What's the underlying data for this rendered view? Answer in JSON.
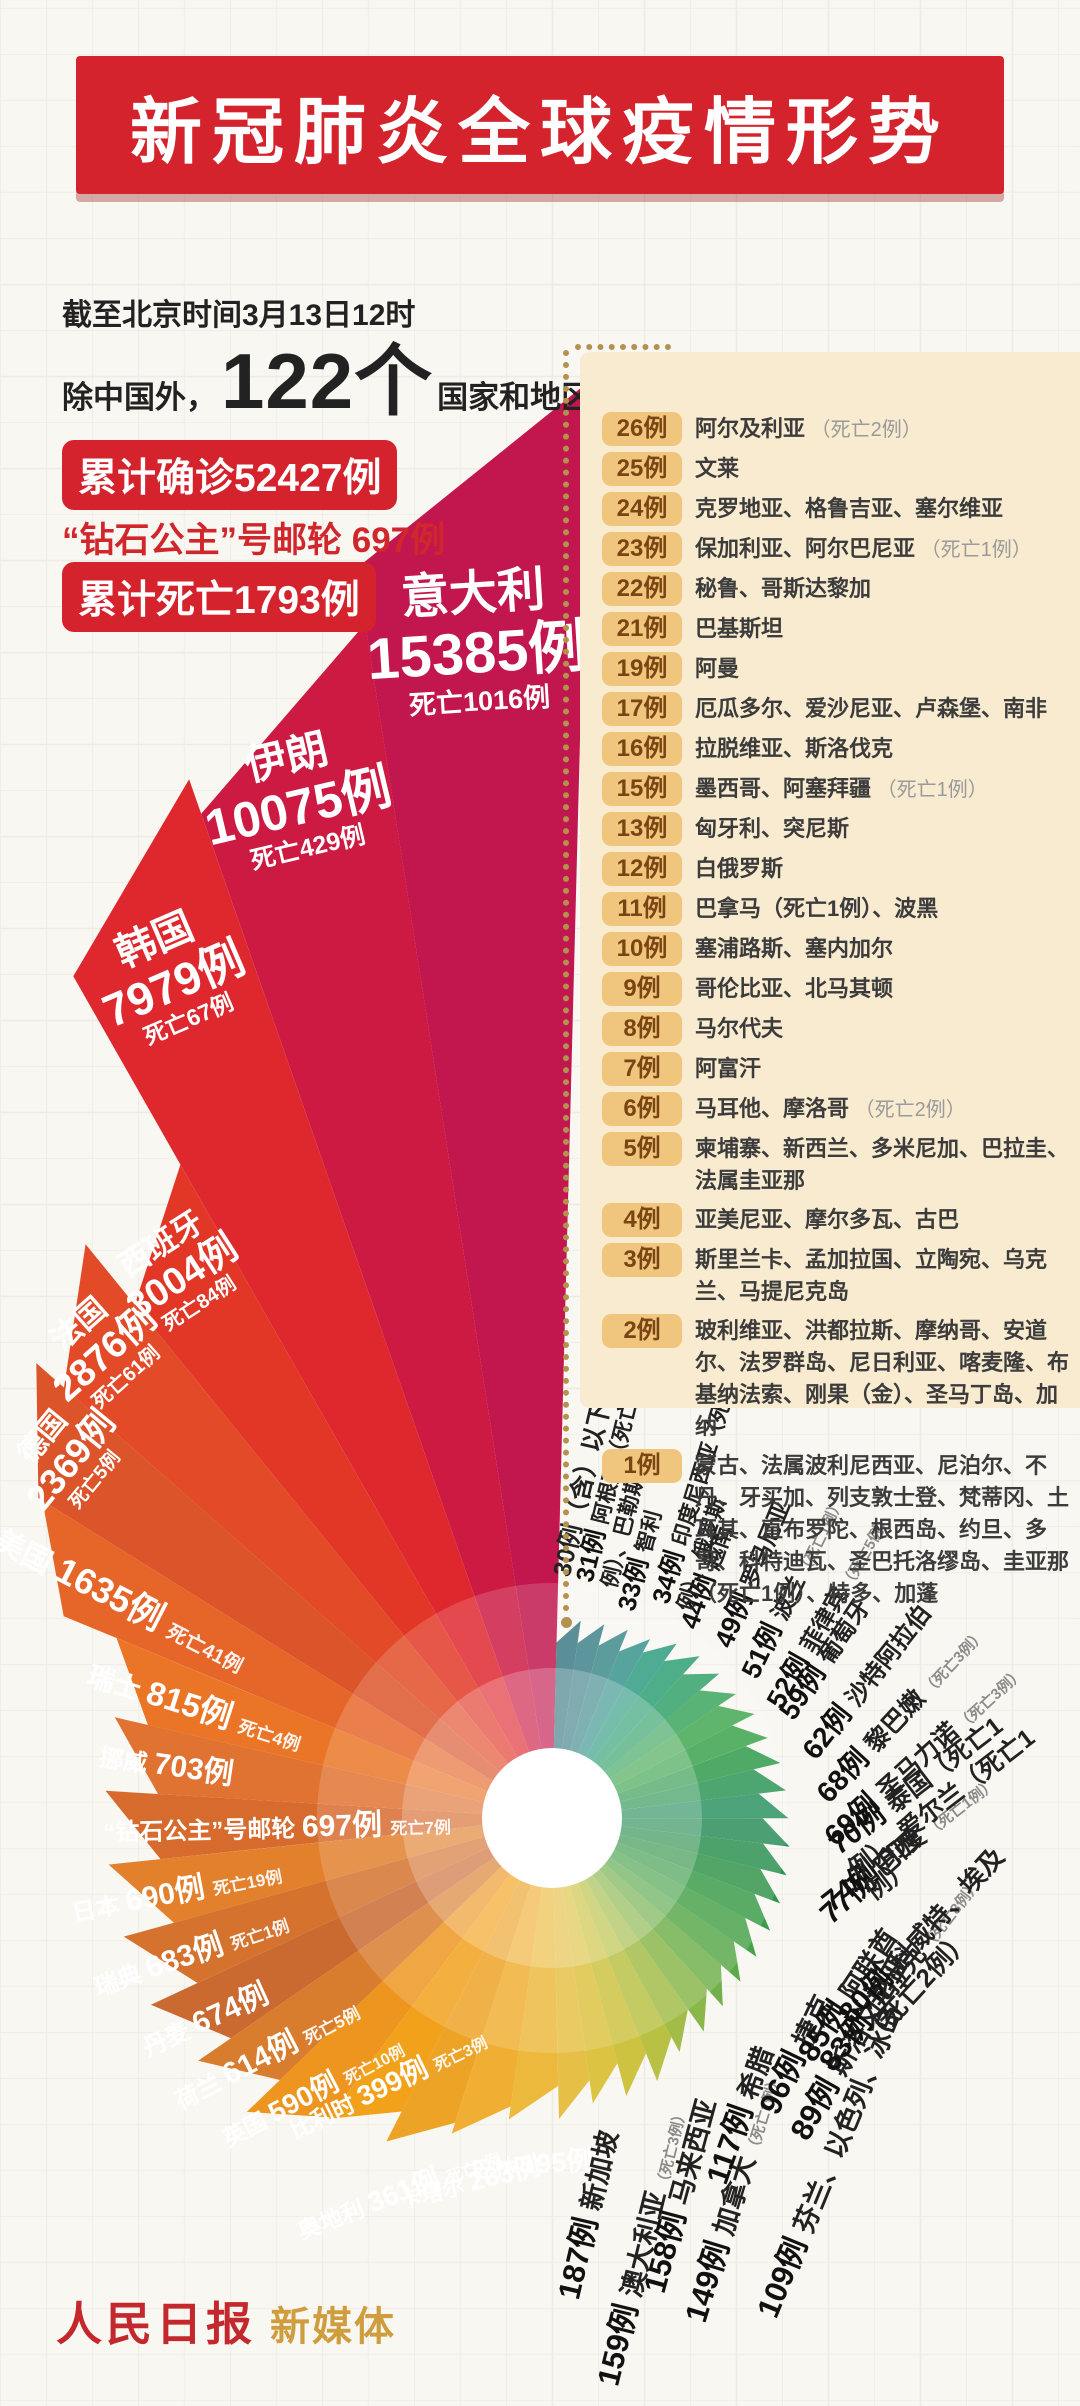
{
  "title": "新冠肺炎全球疫情形势",
  "stats": {
    "asof": "截至北京时间3月13日12时",
    "outside_prefix": "除中国外，",
    "countries_count": "122个",
    "countries_suffix": "国家和地区",
    "confirmed_badge": "累计确诊52427例",
    "ship_line": "“钻石公主”号邮轮 697例",
    "deaths_badge": "累计死亡1793例"
  },
  "panel": {
    "items": [
      {
        "badge": "26例",
        "names": "阿尔及利亚",
        "note": "（死亡2例）"
      },
      {
        "badge": "25例",
        "names": "文莱",
        "note": ""
      },
      {
        "badge": "24例",
        "names": "克罗地亚、格鲁吉亚、塞尔维亚",
        "note": ""
      },
      {
        "badge": "23例",
        "names": "保加利亚、阿尔巴尼亚",
        "note": "（死亡1例）"
      },
      {
        "badge": "22例",
        "names": "秘鲁、哥斯达黎加",
        "note": ""
      },
      {
        "badge": "21例",
        "names": "巴基斯坦",
        "note": ""
      },
      {
        "badge": "19例",
        "names": "阿曼",
        "note": ""
      },
      {
        "badge": "17例",
        "names": "厄瓜多尔、爱沙尼亚、卢森堡、南非",
        "note": ""
      },
      {
        "badge": "16例",
        "names": "拉脱维亚、斯洛伐克",
        "note": ""
      },
      {
        "badge": "15例",
        "names": "墨西哥、阿塞拜疆",
        "note": "（死亡1例）"
      },
      {
        "badge": "13例",
        "names": "匈牙利、突尼斯",
        "note": ""
      },
      {
        "badge": "12例",
        "names": "白俄罗斯",
        "note": ""
      },
      {
        "badge": "11例",
        "names": "巴拿马（死亡1例）、波黑",
        "note": ""
      },
      {
        "badge": "10例",
        "names": "塞浦路斯、塞内加尔",
        "note": ""
      },
      {
        "badge": "9例",
        "names": "哥伦比亚、北马其顿",
        "note": ""
      },
      {
        "badge": "8例",
        "names": "马尔代夫",
        "note": ""
      },
      {
        "badge": "7例",
        "names": "阿富汗",
        "note": ""
      },
      {
        "badge": "6例",
        "names": "马耳他、摩洛哥",
        "note": "（死亡2例）"
      },
      {
        "badge": "5例",
        "names": "柬埔寨、新西兰、多米尼加、巴拉圭、法属圭亚那",
        "note": ""
      },
      {
        "badge": "4例",
        "names": "亚美尼亚、摩尔多瓦、古巴",
        "note": ""
      },
      {
        "badge": "3例",
        "names": "斯里兰卡、孟加拉国、立陶宛、乌克兰、马提尼克岛",
        "note": ""
      },
      {
        "badge": "2例",
        "names": "玻利维亚、洪都拉斯、摩纳哥、安道尔、法罗群岛、尼日利亚、喀麦隆、布基纳法索、刚果（金）、圣马丁岛、加纳",
        "note": ""
      },
      {
        "badge": "1例",
        "names": "蒙古、法属波利尼西亚、尼泊尔、不丹、牙买加、列支敦士登、梵蒂冈、土耳其、直布罗陀、根西岛、约旦、多哥、科特迪瓦、圣巴托洛缪岛、圭亚那（死亡1例）、特多、加蓬",
        "note": ""
      }
    ]
  },
  "chart_data": {
    "type": "radial-fan",
    "unit": "例",
    "note": "wedge length encodes cumulative confirmed cases; order is counter-clockwise from 意大利",
    "series": [
      {
        "name": "意大利",
        "cases": 15385,
        "deaths": "死亡1016例",
        "color": "#c2164e"
      },
      {
        "name": "伊朗",
        "cases": 10075,
        "deaths": "死亡429例",
        "color": "#cc1a42"
      },
      {
        "name": "韩国",
        "cases": 7979,
        "deaths": "死亡67例",
        "color": "#df272e"
      },
      {
        "name": "西班牙",
        "cases": 3004,
        "deaths": "死亡84例",
        "color": "#e23726"
      },
      {
        "name": "法国",
        "cases": 2876,
        "deaths": "死亡61例",
        "color": "#e34a27"
      },
      {
        "name": "德国",
        "cases": 2369,
        "deaths": "死亡5例",
        "color": "#dc5429"
      },
      {
        "name": "美国",
        "cases": 1635,
        "deaths": "死亡41例",
        "color": "#e6662a"
      },
      {
        "name": "瑞士",
        "cases": 815,
        "deaths": "死亡4例",
        "color": "#ea7527"
      },
      {
        "name": "挪威",
        "cases": 703,
        "deaths": "",
        "color": "#e07232"
      },
      {
        "name": "“钻石公主”号邮轮",
        "cases": 697,
        "deaths": "死亡7例",
        "color": "#d76b2e"
      },
      {
        "name": "日本",
        "cases": 690,
        "deaths": "死亡19例",
        "color": "#e2802c"
      },
      {
        "name": "瑞典",
        "cases": 683,
        "deaths": "死亡1例",
        "color": "#d4722e"
      },
      {
        "name": "丹麦",
        "cases": 674,
        "deaths": "",
        "color": "#ca6a31"
      },
      {
        "name": "荷兰",
        "cases": 614,
        "deaths": "死亡5例",
        "color": "#d87c2d"
      },
      {
        "name": "英国",
        "cases": 590,
        "deaths": "死亡10例",
        "color": "#ee9520"
      },
      {
        "name": "比利时",
        "cases": 399,
        "deaths": "死亡3例",
        "color": "#f2a11b"
      },
      {
        "name": "奥地利",
        "cases": 361,
        "deaths": "死亡1例",
        "color": "#eda326"
      },
      {
        "name": "卡塔尔",
        "cases": 263,
        "deaths": "",
        "color": "#f0ae33"
      },
      {
        "name": "巴林",
        "cases": 195,
        "deaths": "",
        "color": "#ecb93d"
      },
      {
        "name": "新加坡",
        "cases": 187,
        "deaths": "",
        "color": "#e6c046"
      },
      {
        "name": "澳大利亚",
        "cases": 159,
        "deaths": "（死亡3例）",
        "color": "#ddc342"
      },
      {
        "name": "马来西亚",
        "cases": 158,
        "deaths": "",
        "color": "#cdc341"
      },
      {
        "name": "加拿大",
        "cases": 149,
        "deaths": "（死亡1例）",
        "color": "#b8c144"
      },
      {
        "name": "希腊",
        "cases": 117,
        "deaths": "",
        "color": "#a2bc47"
      },
      {
        "name": "芬兰、以色列、冰岛",
        "cases": 109,
        "deaths": "",
        "color": "#8ab74a"
      },
      {
        "name": "捷克",
        "cases": 96,
        "deaths": "",
        "color": "#71b04c"
      },
      {
        "name": "斯洛文尼亚",
        "cases": 89,
        "deaths": "",
        "color": "#5aa94b"
      },
      {
        "name": "阿联酋",
        "cases": 85,
        "deaths": "",
        "color": "#47a24a"
      },
      {
        "name": "伊拉克",
        "cases": 83,
        "deaths": "（死亡8例）",
        "color": "#3b9b49"
      },
      {
        "name": "科威特、埃及（死亡2例）",
        "cases": 80,
        "deaths": "",
        "color": "#319449"
      },
      {
        "name": "巴西",
        "cases": 77,
        "deaths": "",
        "color": "#2c904e"
      },
      {
        "name": "印度",
        "cases": 74,
        "deaths": "（死亡1例）",
        "color": "#2a8d58"
      },
      {
        "name": "泰国（死亡1例）、爱尔兰（死亡1例）",
        "cases": 70,
        "deaths": "",
        "color": "#2a9160"
      },
      {
        "name": "圣马力诺",
        "cases": 69,
        "deaths": "（死亡3例）",
        "color": "#2c9554"
      },
      {
        "name": "黎巴嫩",
        "cases": 68,
        "deaths": "（死亡3例）",
        "color": "#2f9a4b"
      },
      {
        "name": "沙特阿拉伯",
        "cases": 62,
        "deaths": "",
        "color": "#3aa24c"
      },
      {
        "name": "葡萄牙",
        "cases": 59,
        "deaths": "",
        "color": "#42a750"
      },
      {
        "name": "菲律宾",
        "cases": 52,
        "deaths": "（死亡5例）",
        "color": "#3aa45c"
      },
      {
        "name": "波兰",
        "cases": 51,
        "deaths": "（死亡1例）",
        "color": "#32a068"
      },
      {
        "name": "罗马尼亚",
        "cases": 49,
        "deaths": "",
        "color": "#2e9f74"
      },
      {
        "name": "越南",
        "cases": 44,
        "deaths": "",
        "color": "#2f9b80"
      },
      {
        "name": "印度尼西亚（死亡1例）、俄罗斯",
        "cases": 34,
        "deaths": "",
        "color": "#37938c"
      },
      {
        "name": "智利",
        "cases": 33,
        "deaths": "",
        "color": "#3d8a8b"
      },
      {
        "name": "阿根廷（死亡1例）、巴勒斯坦",
        "cases": 31,
        "deaths": "",
        "color": "#3e8189"
      },
      {
        "name": "30例（含）以下",
        "cases": 30,
        "deaths": "",
        "color": "#3b7a85",
        "whole_label": true
      }
    ]
  },
  "footer": {
    "brand": "人民日报",
    "sub": "新媒体"
  }
}
